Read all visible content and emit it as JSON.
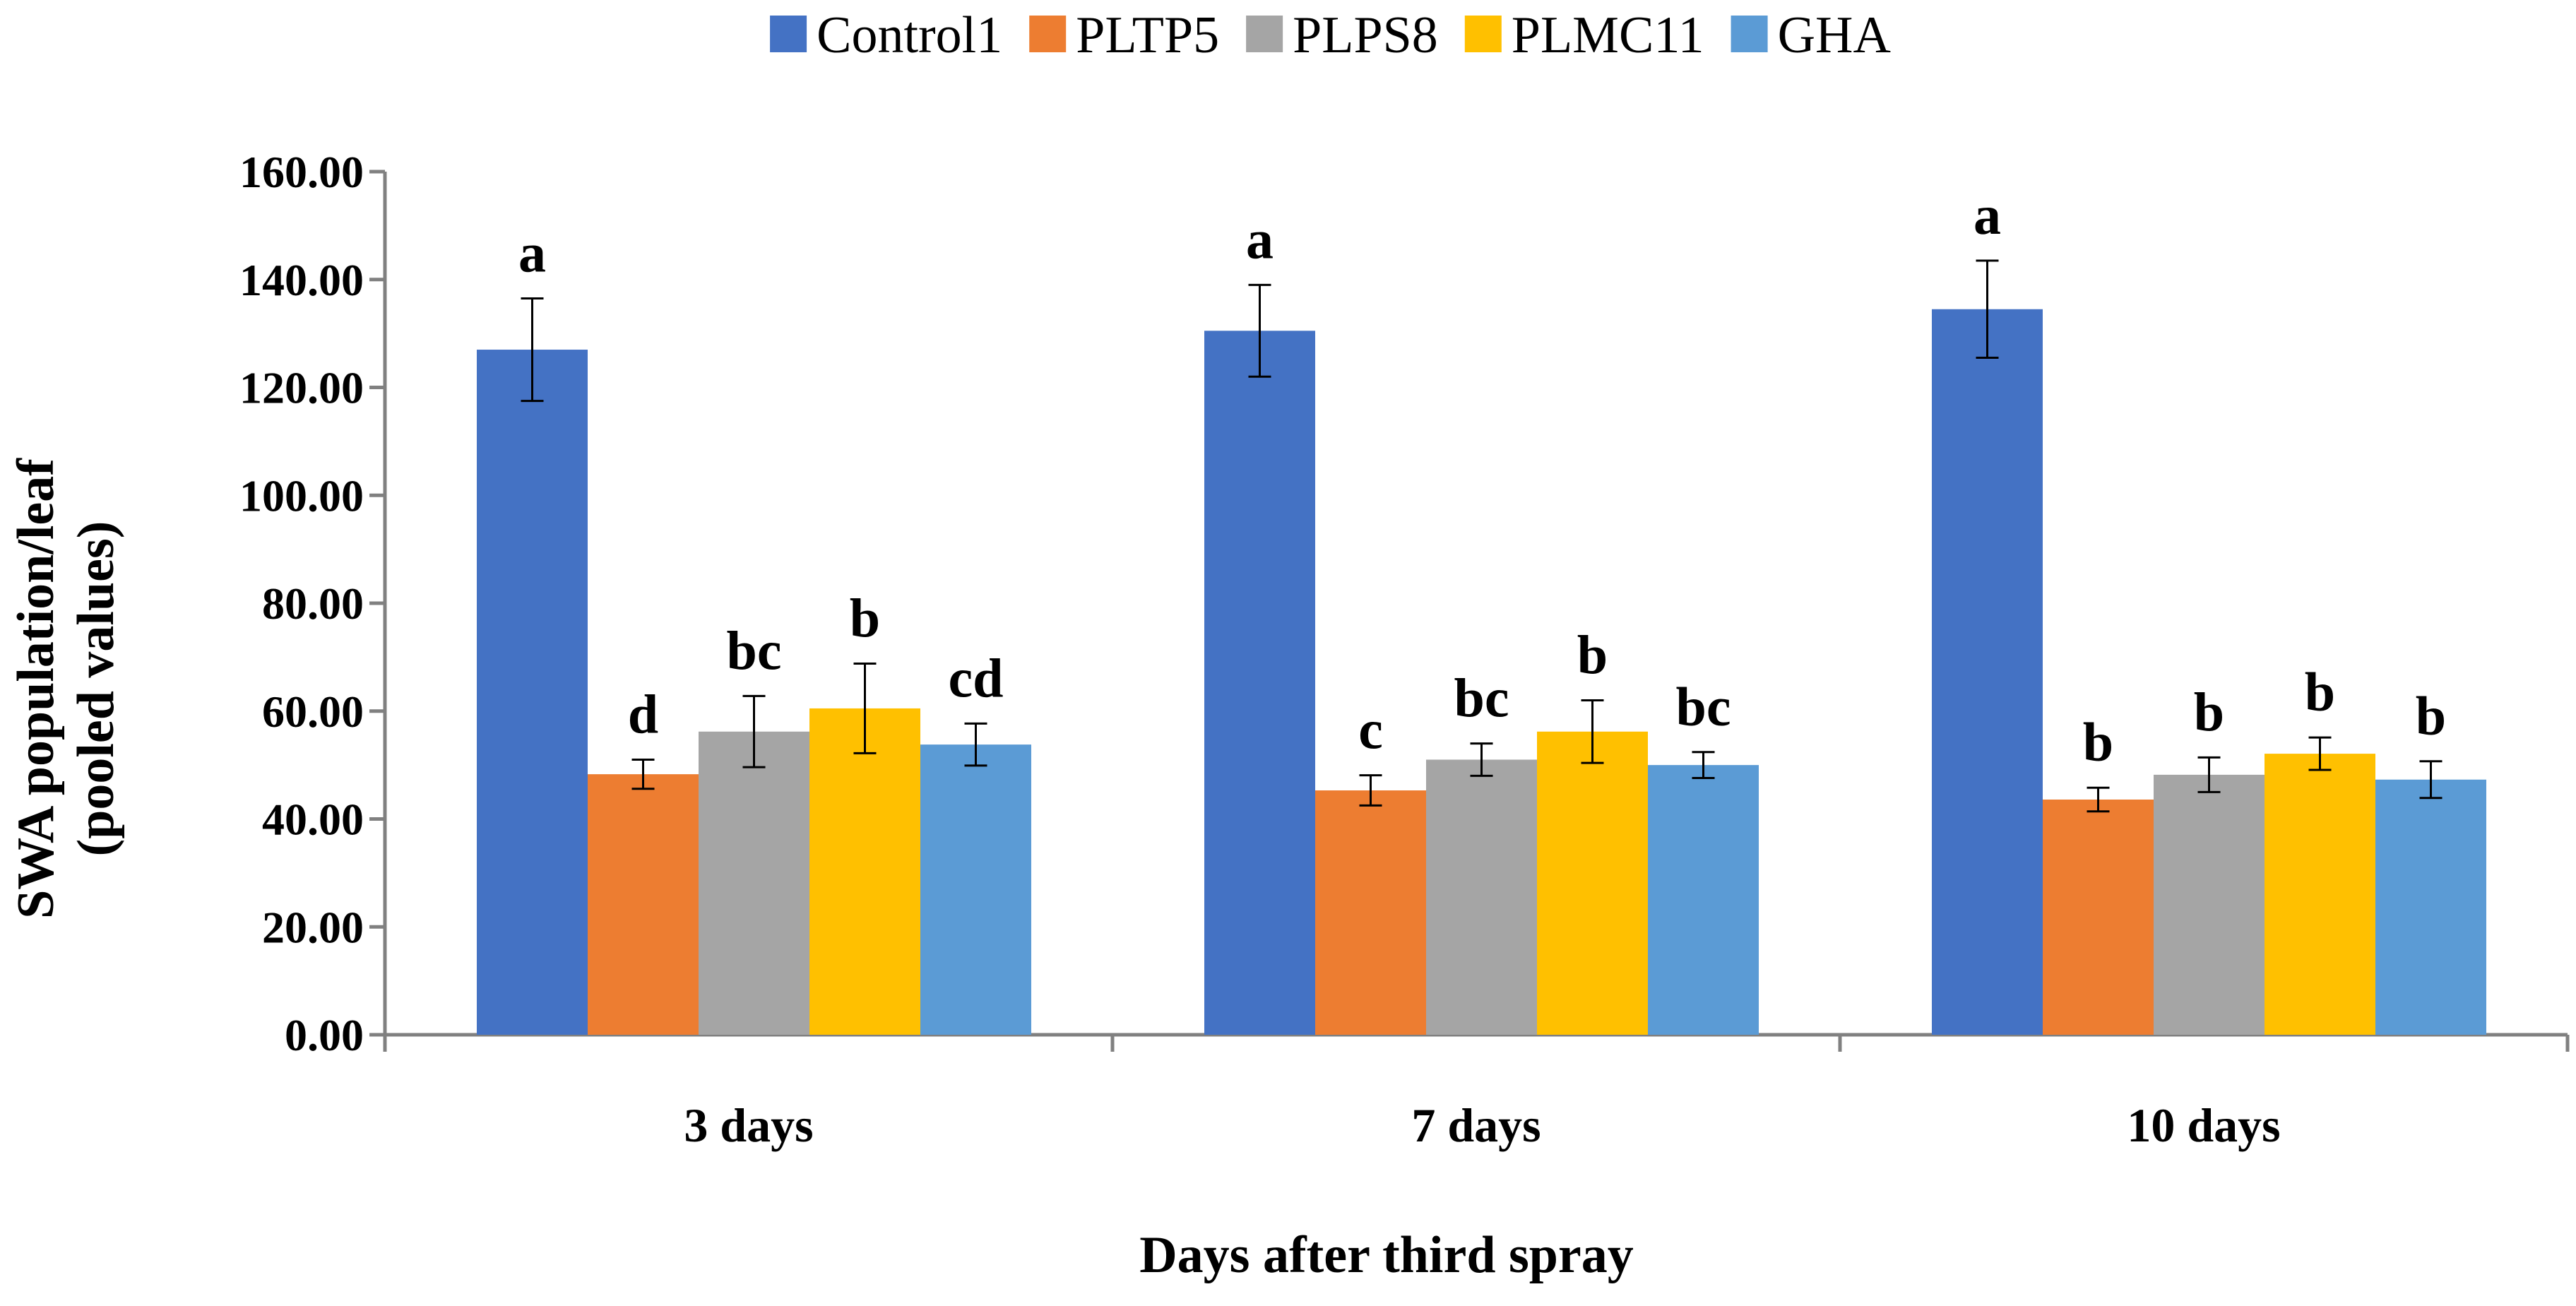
{
  "chart_data": {
    "type": "bar",
    "categories": [
      "3 days",
      "7 days",
      "10 days"
    ],
    "series": [
      {
        "name": "Control1",
        "color": "#4472C4",
        "values": [
          127.0,
          130.5,
          134.5
        ],
        "errors": [
          9.5,
          8.5,
          9.0
        ],
        "letters": [
          "a",
          "a",
          "a"
        ]
      },
      {
        "name": "PLTP5",
        "color": "#ED7D31",
        "values": [
          48.3,
          45.3,
          43.6
        ],
        "errors": [
          2.7,
          2.8,
          2.2
        ],
        "letters": [
          "d",
          "c",
          "b"
        ]
      },
      {
        "name": "PLPS8",
        "color": "#A5A5A5",
        "values": [
          56.2,
          51.0,
          48.2
        ],
        "errors": [
          6.6,
          3.0,
          3.2
        ],
        "letters": [
          "bc",
          "bc",
          "b"
        ]
      },
      {
        "name": "PLMC11",
        "color": "#FFC000",
        "values": [
          60.5,
          56.2,
          52.1
        ],
        "errors": [
          8.3,
          5.8,
          3.0
        ],
        "letters": [
          "b",
          "b",
          "b"
        ]
      },
      {
        "name": "GHA",
        "color": "#5B9BD5",
        "values": [
          53.8,
          50.0,
          47.3
        ],
        "errors": [
          3.9,
          2.4,
          3.4
        ],
        "letters": [
          "cd",
          "bc",
          "b"
        ]
      }
    ],
    "title": "",
    "xlabel": "Days after third spray",
    "ylabel": [
      "SWA population/leaf",
      "(pooled values)"
    ],
    "ylim": [
      0,
      160
    ],
    "yticks": [
      "0.00",
      "20.00",
      "40.00",
      "60.00",
      "80.00",
      "100.00",
      "120.00",
      "140.00",
      "160.00"
    ],
    "legend_position": "top-center",
    "grid": false
  }
}
